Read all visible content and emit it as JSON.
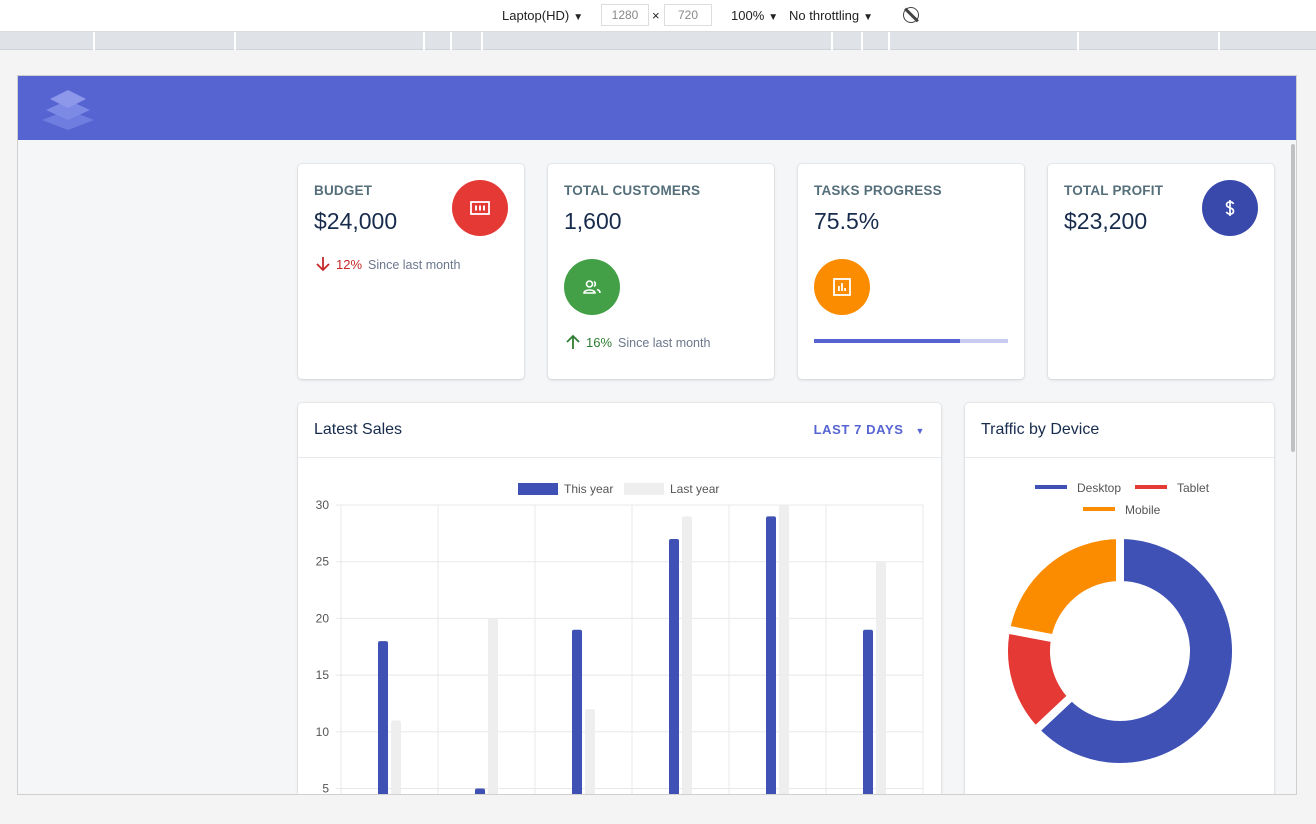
{
  "devtools": {
    "device": "Laptop(HD)",
    "width": "1280",
    "times": "×",
    "height": "720",
    "zoom": "100%",
    "throttling": "No throttling"
  },
  "stats": [
    {
      "label": "BUDGET",
      "value": "$24,000",
      "icon": "money-icon",
      "color": "#e53935",
      "trend_direction": "down",
      "trend_pct": "12%",
      "trend_color": "#c62828",
      "trend_text": "Since last month"
    },
    {
      "label": "TOTAL CUSTOMERS",
      "value": "1,600",
      "icon": "people-icon",
      "color": "#43a047",
      "trend_direction": "up",
      "trend_pct": "16%",
      "trend_color": "#2e7d32",
      "trend_text": "Since last month"
    },
    {
      "label": "TASKS PROGRESS",
      "value": "75.5%",
      "icon": "insert-chart-icon",
      "color": "#fb8c00",
      "progress": 75.5
    },
    {
      "label": "TOTAL PROFIT",
      "value": "$23,200",
      "icon": "dollar-icon",
      "color": "#3949ab"
    }
  ],
  "sales": {
    "title": "Latest Sales",
    "range_label": "LAST 7 DAYS"
  },
  "traffic": {
    "title": "Traffic by Device"
  },
  "chart_data": [
    {
      "type": "bar",
      "series": [
        {
          "name": "This year",
          "color": "#3f51b5",
          "values": [
            18,
            5,
            19,
            27,
            29,
            19
          ]
        },
        {
          "name": "Last year",
          "color": "#eeeeee",
          "values": [
            11,
            20,
            12,
            29,
            30,
            25
          ]
        }
      ],
      "ylim": [
        0,
        30
      ],
      "yticks": [
        30,
        25,
        20,
        15,
        10,
        5
      ],
      "grid": true,
      "legend": "top-center"
    },
    {
      "type": "pie",
      "donut": true,
      "labels": [
        "Desktop",
        "Tablet",
        "Mobile"
      ],
      "values": [
        63,
        15,
        22
      ],
      "colors": [
        "#3f51b5",
        "#e53935",
        "#fb8c00"
      ],
      "legend": "top-center"
    }
  ]
}
